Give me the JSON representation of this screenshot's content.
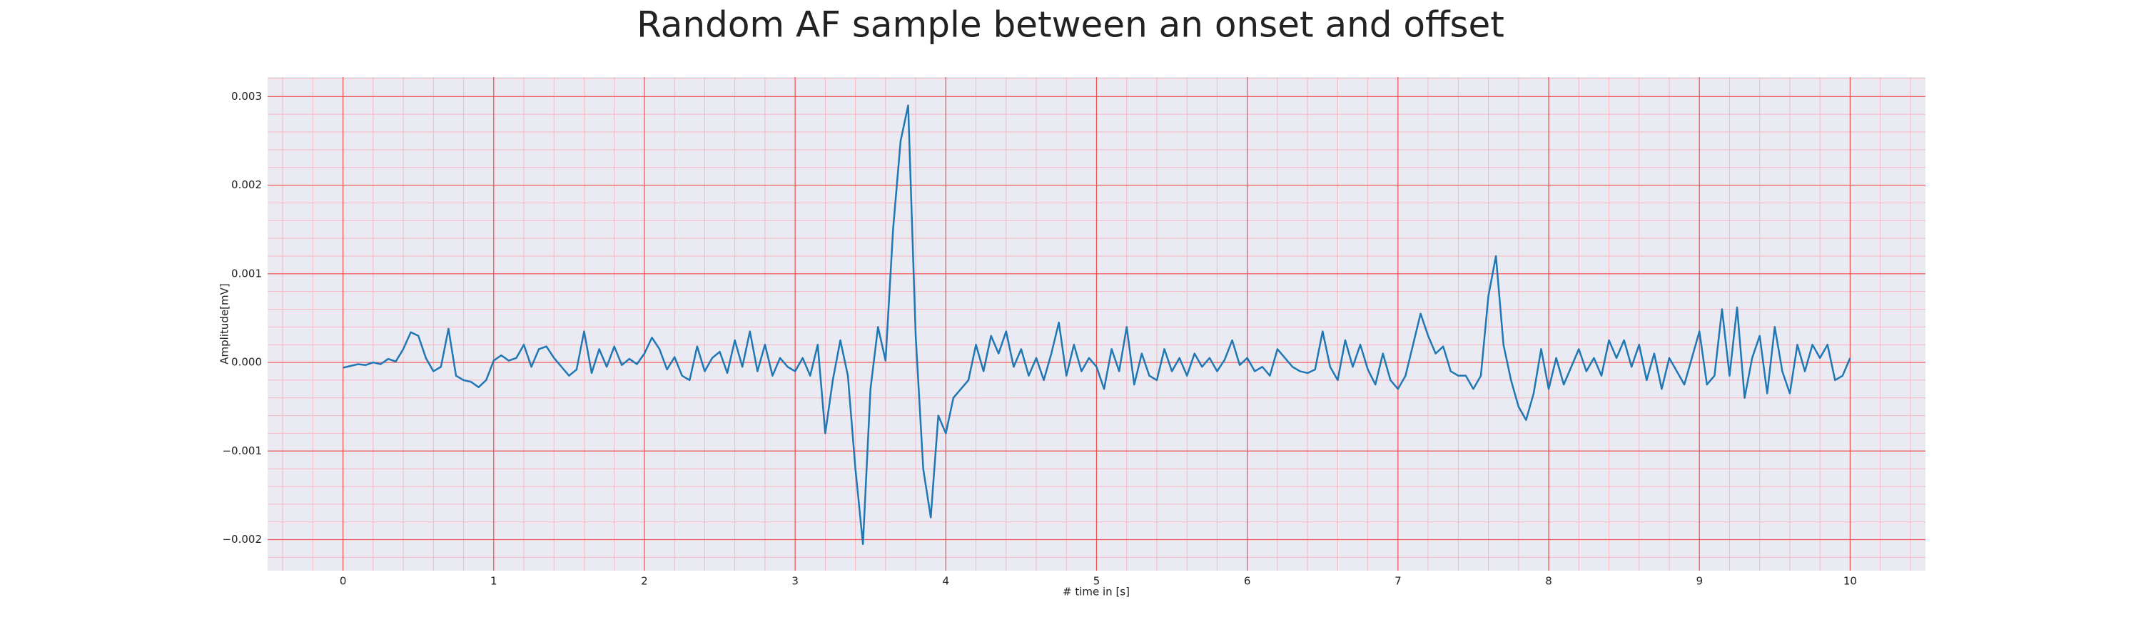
{
  "chart_data": {
    "type": "line",
    "title": "Random AF sample between an onset and offset",
    "xlabel": "# time in [s]",
    "ylabel": "Amplitude[mV]",
    "color": "#1f77b4",
    "grid": true,
    "minor_grid": true,
    "xlim": [
      -0.5,
      10.5
    ],
    "ylim": [
      -0.00235,
      0.00322
    ],
    "xticks": [
      0,
      1,
      2,
      3,
      4,
      5,
      6,
      7,
      8,
      9,
      10
    ],
    "yticks": [
      {
        "value": -0.002,
        "label": "−0.002"
      },
      {
        "value": -0.001,
        "label": "−0.001"
      },
      {
        "value": 0,
        "label": "0.000"
      },
      0.001,
      0.002,
      0.003
    ],
    "x": [
      0,
      0.05,
      0.1,
      0.15,
      0.2,
      0.25,
      0.3,
      0.35,
      0.4,
      0.45,
      0.5,
      0.55,
      0.6,
      0.65,
      0.7,
      0.75,
      0.8,
      0.85,
      0.9,
      0.95,
      1,
      1.05,
      1.1,
      1.15,
      1.2,
      1.25,
      1.3,
      1.35,
      1.4,
      1.45,
      1.5,
      1.55,
      1.6,
      1.65,
      1.7,
      1.75,
      1.8,
      1.85,
      1.9,
      1.95,
      2,
      2.05,
      2.1,
      2.15,
      2.2,
      2.25,
      2.3,
      2.35,
      2.4,
      2.45,
      2.5,
      2.55,
      2.6,
      2.65,
      2.7,
      2.75,
      2.8,
      2.85,
      2.9,
      2.95,
      3,
      3.05,
      3.1,
      3.15,
      3.2,
      3.25,
      3.3,
      3.35,
      3.4,
      3.45,
      3.5,
      3.55,
      3.6,
      3.65,
      3.7,
      3.75,
      3.8,
      3.85,
      3.9,
      3.95,
      4,
      4.05,
      4.1,
      4.15,
      4.2,
      4.25,
      4.3,
      4.35,
      4.4,
      4.45,
      4.5,
      4.55,
      4.6,
      4.65,
      4.7,
      4.75,
      4.8,
      4.85,
      4.9,
      4.95,
      5,
      5.05,
      5.1,
      5.15,
      5.2,
      5.25,
      5.3,
      5.35,
      5.4,
      5.45,
      5.5,
      5.55,
      5.6,
      5.65,
      5.7,
      5.75,
      5.8,
      5.85,
      5.9,
      5.95,
      6,
      6.05,
      6.1,
      6.15,
      6.2,
      6.25,
      6.3,
      6.35,
      6.4,
      6.45,
      6.5,
      6.55,
      6.6,
      6.65,
      6.7,
      6.75,
      6.8,
      6.85,
      6.9,
      6.95,
      7,
      7.05,
      7.1,
      7.15,
      7.2,
      7.25,
      7.3,
      7.35,
      7.4,
      7.45,
      7.5,
      7.55,
      7.6,
      7.65,
      7.7,
      7.75,
      7.8,
      7.85,
      7.9,
      7.95,
      8,
      8.05,
      8.1,
      8.15,
      8.2,
      8.25,
      8.3,
      8.35,
      8.4,
      8.45,
      8.5,
      8.55,
      8.6,
      8.65,
      8.7,
      8.75,
      8.8,
      8.85,
      8.9,
      8.95,
      9,
      9.05,
      9.1,
      9.15,
      9.2,
      9.25,
      9.3,
      9.35,
      9.4,
      9.45,
      9.5,
      9.55,
      9.6,
      9.65,
      9.7,
      9.75,
      9.8,
      9.85,
      9.9,
      9.95,
      10
    ],
    "values": [
      -6e-05,
      -4e-05,
      -2e-05,
      -3e-05,
      0,
      -2e-05,
      4e-05,
      1e-05,
      0.00015,
      0.00034,
      0.0003,
      5e-05,
      -0.0001,
      -5e-05,
      0.00038,
      -0.00015,
      -0.0002,
      -0.00022,
      -0.00028,
      -0.0002,
      2e-05,
      8e-05,
      2e-05,
      5e-05,
      0.0002,
      -5e-05,
      0.00015,
      0.00018,
      5e-05,
      -5e-05,
      -0.00015,
      -8e-05,
      0.00035,
      -0.00012,
      0.00015,
      -5e-05,
      0.00018,
      -3e-05,
      4e-05,
      -2e-05,
      0.0001,
      0.00028,
      0.00015,
      -8e-05,
      6e-05,
      -0.00015,
      -0.0002,
      0.00018,
      -0.0001,
      5e-05,
      0.00012,
      -0.00012,
      0.00025,
      -5e-05,
      0.00035,
      -0.0001,
      0.0002,
      -0.00015,
      5e-05,
      -5e-05,
      -0.0001,
      5e-05,
      -0.00015,
      0.0002,
      -0.0008,
      -0.0002,
      0.00025,
      -0.00015,
      -0.0012,
      -0.00205,
      -0.0003,
      0.0004,
      2e-05,
      0.0015,
      0.0025,
      0.0029,
      0.0003,
      -0.0012,
      -0.00175,
      -0.0006,
      -0.0008,
      -0.0004,
      -0.0003,
      -0.0002,
      0.0002,
      -0.0001,
      0.0003,
      0.0001,
      0.00035,
      -5e-05,
      0.00015,
      -0.00015,
      5e-05,
      -0.0002,
      0.0001,
      0.00045,
      -0.00015,
      0.0002,
      -0.0001,
      5e-05,
      -5e-05,
      -0.0003,
      0.00015,
      -0.0001,
      0.0004,
      -0.00025,
      0.0001,
      -0.00015,
      -0.0002,
      0.00015,
      -0.0001,
      5e-05,
      -0.00015,
      0.0001,
      -5e-05,
      5e-05,
      -0.0001,
      3e-05,
      0.00025,
      -3e-05,
      5e-05,
      -0.0001,
      -5e-05,
      -0.00015,
      0.00015,
      5e-05,
      -5e-05,
      -0.0001,
      -0.00012,
      -8e-05,
      0.00035,
      -5e-05,
      -0.0002,
      0.00025,
      -5e-05,
      0.0002,
      -8e-05,
      -0.00025,
      0.0001,
      -0.0002,
      -0.0003,
      -0.00015,
      0.0002,
      0.00055,
      0.0003,
      0.0001,
      0.00018,
      -0.0001,
      -0.00015,
      -0.00015,
      -0.0003,
      -0.00015,
      0.00075,
      0.0012,
      0.0002,
      -0.0002,
      -0.0005,
      -0.00065,
      -0.00035,
      0.00015,
      -0.0003,
      5e-05,
      -0.00025,
      -5e-05,
      0.00015,
      -0.0001,
      5e-05,
      -0.00015,
      0.00025,
      5e-05,
      0.00025,
      -5e-05,
      0.0002,
      -0.0002,
      0.0001,
      -0.0003,
      5e-05,
      -0.0001,
      -0.00025,
      5e-05,
      0.00035,
      -0.00025,
      -0.00015,
      0.0006,
      -0.00015,
      0.00062,
      -0.0004,
      5e-05,
      0.0003,
      -0.00035,
      0.0004,
      -0.0001,
      -0.00035,
      0.0002,
      -0.0001,
      0.0002,
      5e-05,
      0.0002,
      -0.0002,
      -0.00015,
      5e-05
    ]
  }
}
